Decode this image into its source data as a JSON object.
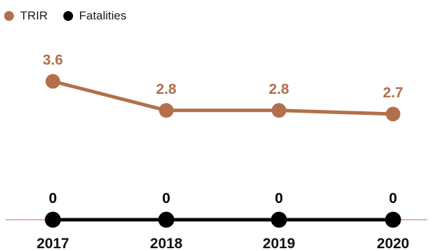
{
  "chart_data": {
    "type": "line",
    "categories": [
      "2017",
      "2018",
      "2019",
      "2020"
    ],
    "series": [
      {
        "name": "TRIR",
        "values": [
          3.6,
          2.8,
          2.8,
          2.7
        ],
        "labels": [
          "3.6",
          "2.8",
          "2.8",
          "2.7"
        ],
        "color": "#b36f4b"
      },
      {
        "name": "Fatalities",
        "values": [
          0,
          0,
          0,
          0
        ],
        "labels": [
          "0",
          "0",
          "0",
          "0"
        ],
        "color": "#000000"
      }
    ],
    "title": "",
    "xlabel": "",
    "ylabel": "",
    "grid": false,
    "legend_position": "top-left"
  },
  "colors": {
    "trir": "#b36f4b",
    "fatalities": "#000000",
    "baseline": "#b36f4b"
  }
}
